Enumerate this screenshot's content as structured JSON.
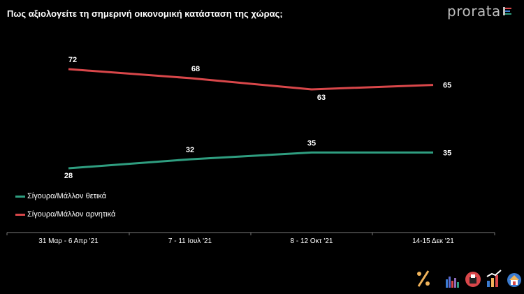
{
  "title": "Πως αξιολογείτε τη σημερινή οικονομική κατάσταση της χώρας;",
  "brand": "prorata",
  "colors": {
    "positive": "#2f9e80",
    "negative": "#d9474a",
    "axis": "#7a7a7a"
  },
  "chart_data": {
    "type": "line",
    "title": "Πως αξιολογείτε τη σημερινή οικονομική κατάσταση της χώρας;",
    "categories": [
      "31 Μαρ - 6 Απρ '21",
      "7 - 11 Ιουλ '21",
      "8 - 12 Οκτ '21",
      "14-15 Δεκ '21"
    ],
    "series": [
      {
        "name": "Σίγουρα/Μάλλον θετικά",
        "values": [
          28,
          32,
          35,
          35
        ],
        "color": "#2f9e80"
      },
      {
        "name": "Σίγουρα/Μάλλον αρνητικά",
        "values": [
          72,
          68,
          63,
          65
        ],
        "color": "#d9474a"
      }
    ],
    "xlabel": "",
    "ylabel": "",
    "ylim": [
      20,
      80
    ],
    "grid": false,
    "legend_position": "left"
  }
}
